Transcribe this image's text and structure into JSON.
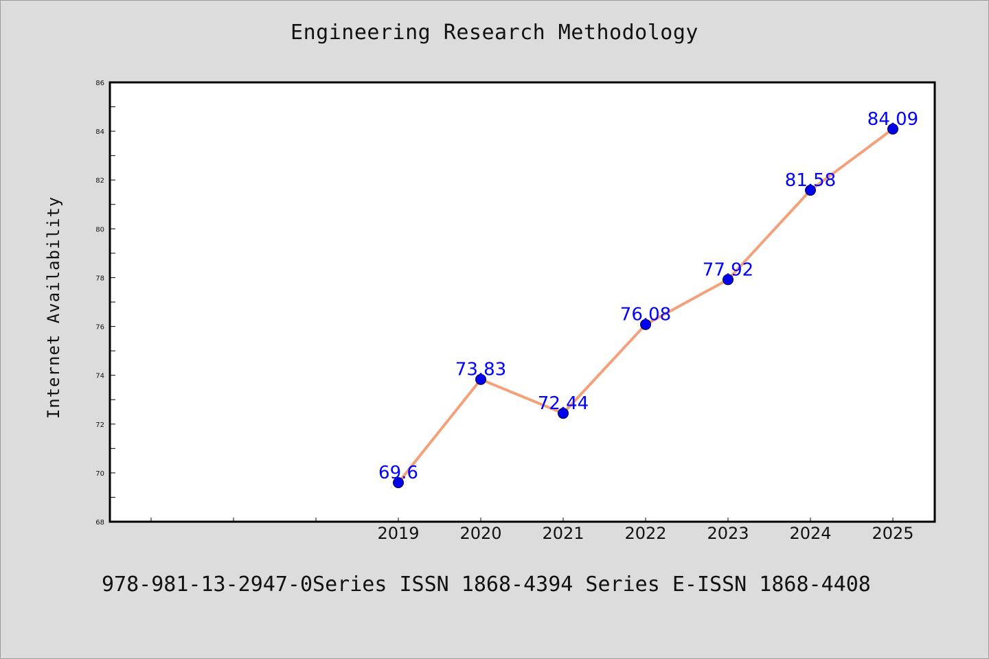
{
  "chart_data": {
    "type": "line",
    "title": "Engineering Research Methodology",
    "xlabel": "",
    "ylabel": "Internet Availability",
    "categories": [
      "2019",
      "2020",
      "2021",
      "2022",
      "2023",
      "2024",
      "2025"
    ],
    "series": [
      {
        "values": [
          69.6,
          73.83,
          72.44,
          76.08,
          77.92,
          81.58,
          84.09
        ],
        "data_labels": [
          "69.6",
          "73.83",
          "72.44",
          "76.08",
          "77.92",
          "81.58",
          "84.09"
        ],
        "line_color": "#f4a07a",
        "marker_color": "#0000ee"
      }
    ],
    "ylim": [
      68,
      86
    ],
    "yticks": [
      "68",
      "70",
      "72",
      "74",
      "76",
      "78",
      "80",
      "82",
      "84",
      "86"
    ],
    "grid": false,
    "legend": "none"
  },
  "footer": "978-981-13-2947-0Series ISSN 1868-4394 Series E-ISSN 1868-4408",
  "colors": {
    "background": "#dcdcdc",
    "plot_background": "#ffffff",
    "label_color": "#0000ff"
  }
}
